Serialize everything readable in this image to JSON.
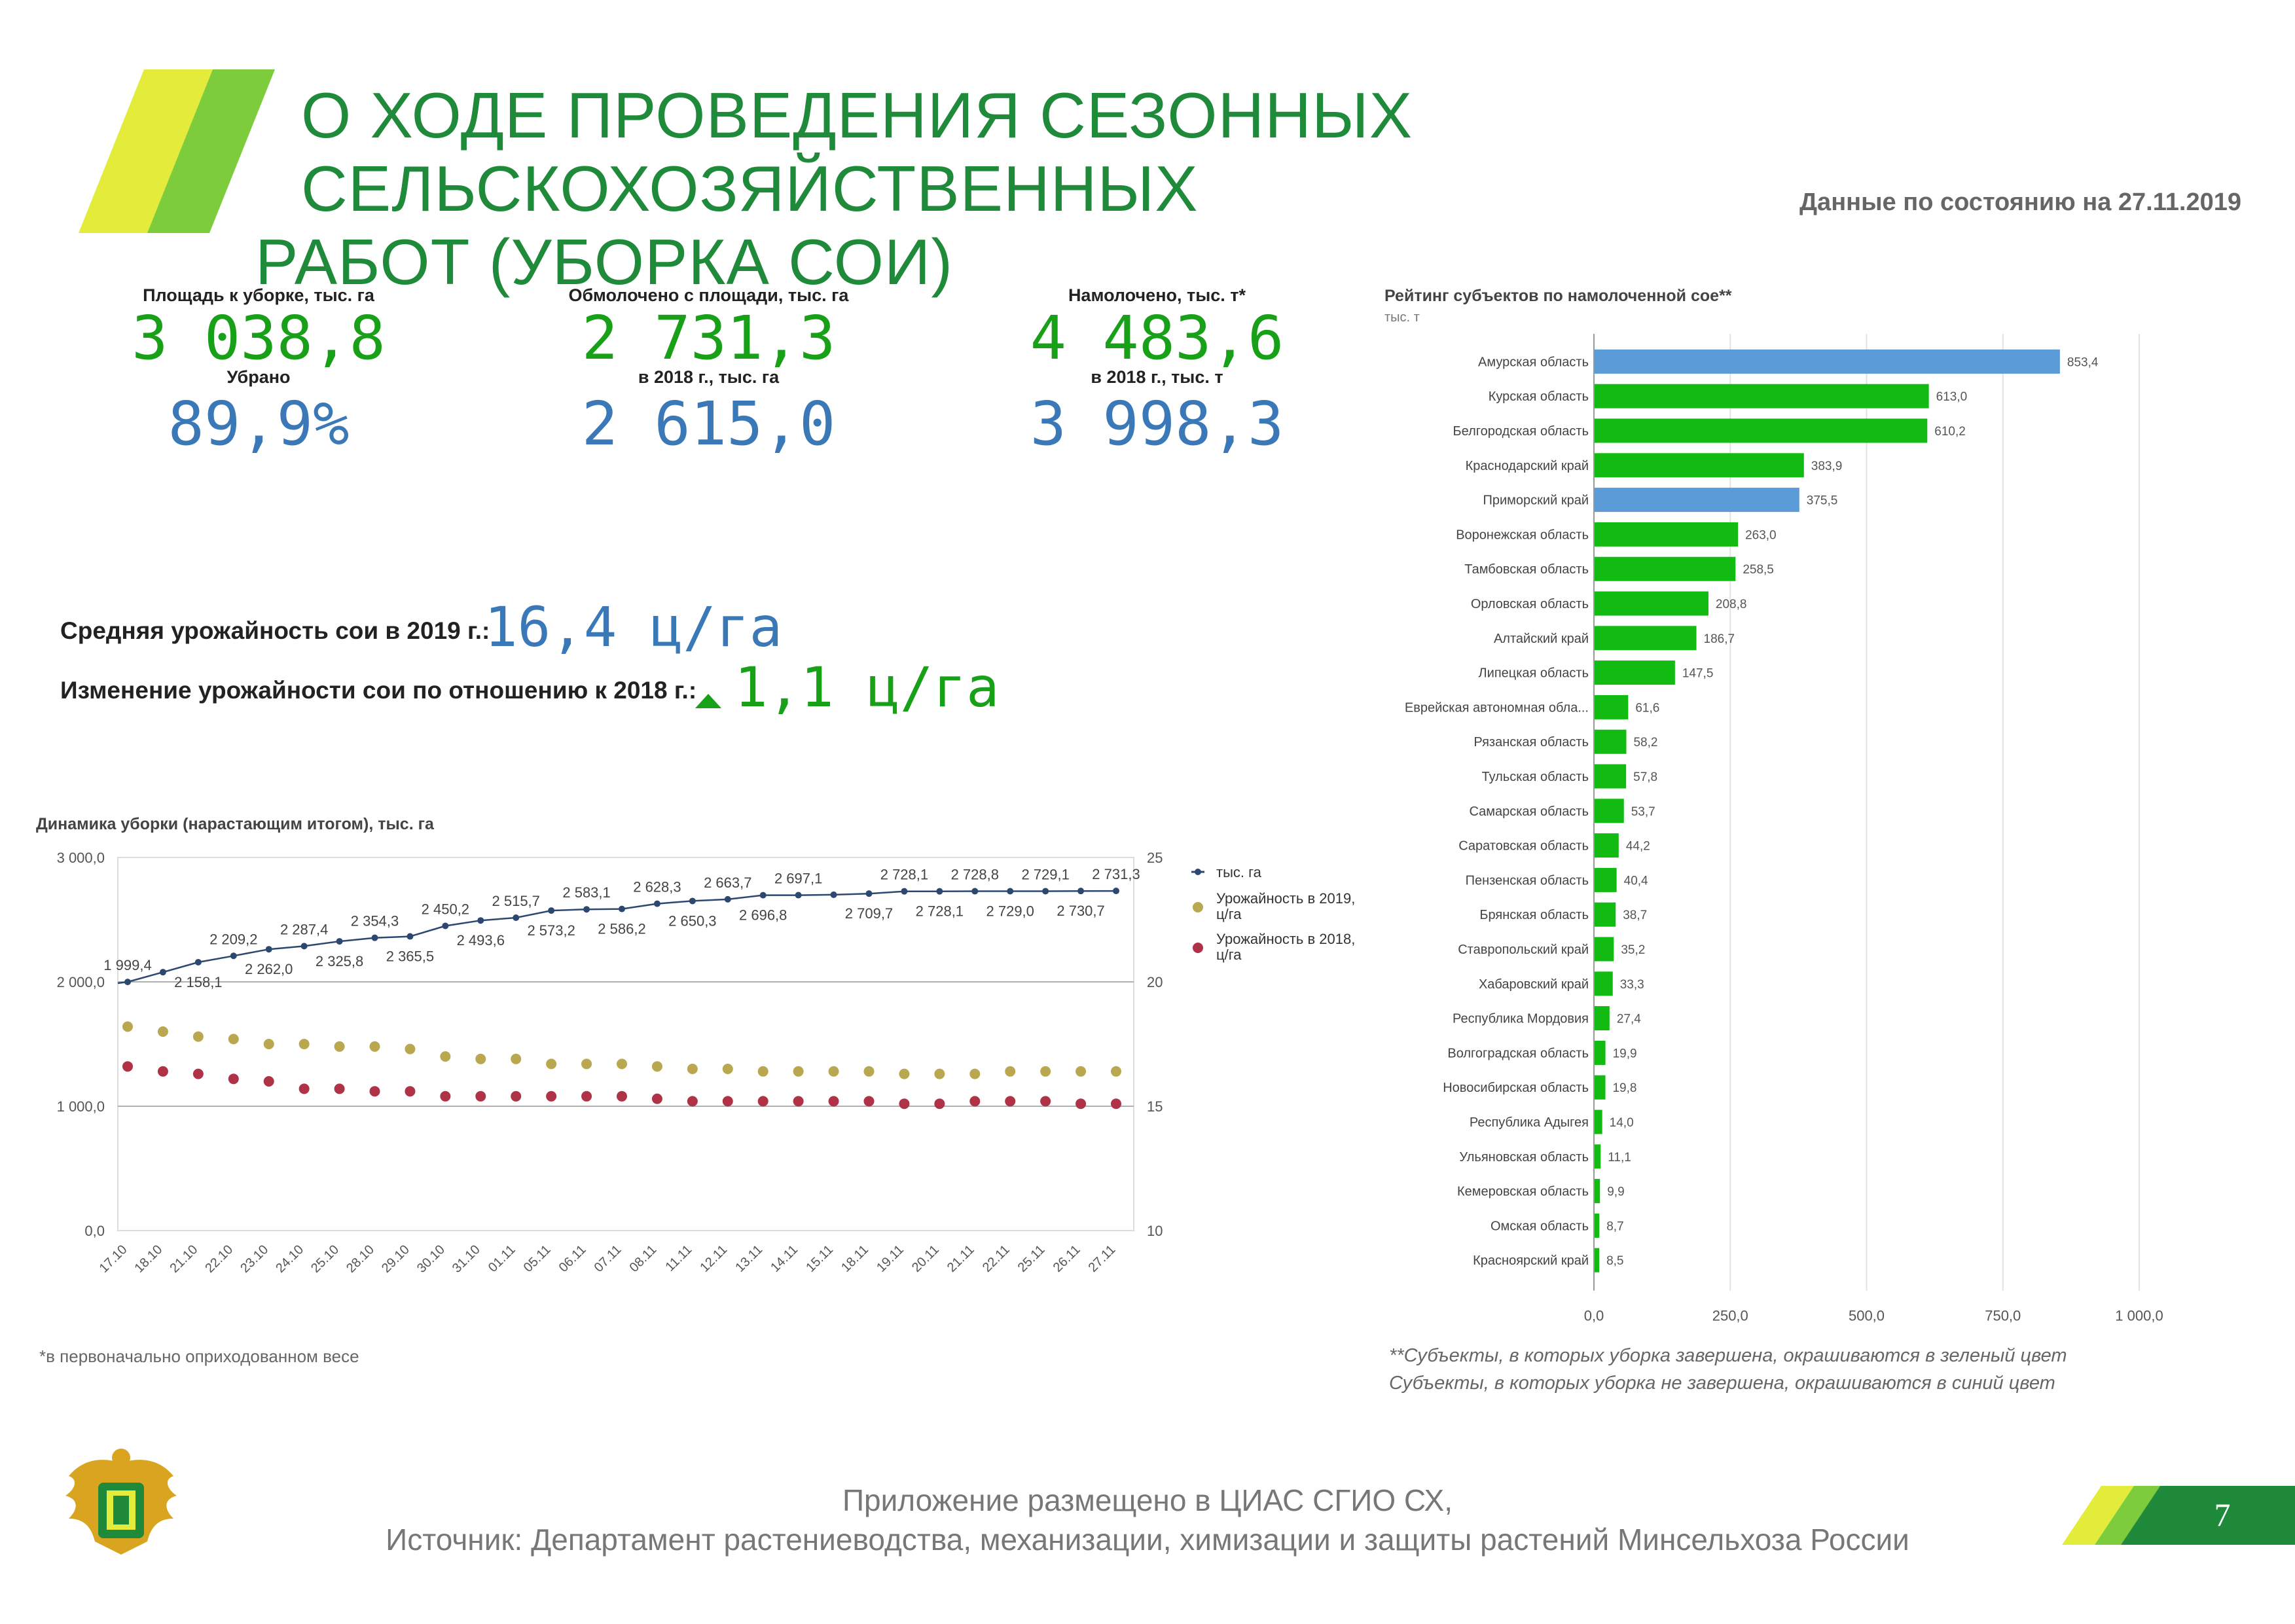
{
  "header": {
    "title_line1": "О ХОДЕ ПРОВЕДЕНИЯ СЕЗОННЫХ СЕЛЬСКОХОЗЯЙСТВЕННЫХ",
    "title_line2": "РАБОТ (УБОРКА СОИ)",
    "as_of": "Данные по состоянию на 27.11.2019"
  },
  "kpis": {
    "area_label": "Площадь к уборке, тыс. га",
    "area_value": "3 038,8",
    "harvested_pct_label": "Убрано",
    "harvested_pct_value": "89,9%",
    "threshed_label": "Обмолочено с площади, тыс. га",
    "threshed_value": "2 731,3",
    "threshed_2018_label": "в 2018 г., тыс. га",
    "threshed_2018_value": "2 615,0",
    "yield_total_label": "Намолочено, тыс. т*",
    "yield_total_value": "4 483,6",
    "yield_total_2018_label": "в 2018 г., тыс. т",
    "yield_total_2018_value": "3 998,3"
  },
  "yield": {
    "avg_label": "Средняя урожайность сои в 2019 г.:",
    "avg_value": "16,4 ц/га",
    "change_label": "Изменение урожайности сои по отношению к 2018 г.:",
    "change_value": "1,1 ц/га"
  },
  "colors": {
    "title_green": "#1e8a3a",
    "kpi_green": "#18a018",
    "kpi_blue": "#3a78b8",
    "bar_green": "#11bb11",
    "bar_blue": "#5b9bd8",
    "line_navy": "#2c4770",
    "dot_2019": "#b9a850",
    "dot_2018": "#b03246"
  },
  "chart_data": [
    {
      "type": "line",
      "title": "Динамика уборки (нарастающим итогом), тыс. га",
      "x": [
        "17.10",
        "18.10",
        "21.10",
        "22.10",
        "23.10",
        "24.10",
        "25.10",
        "28.10",
        "29.10",
        "30.10",
        "31.10",
        "01.11",
        "05.11",
        "06.11",
        "07.11",
        "08.11",
        "11.11",
        "12.11",
        "13.11",
        "14.11",
        "15.11",
        "18.11",
        "19.11",
        "20.11",
        "21.11",
        "22.11",
        "25.11",
        "26.11",
        "27.11"
      ],
      "series": [
        {
          "name": "тыс. га",
          "axis": "left",
          "values": [
            1999.4,
            2078,
            2158.1,
            2209.2,
            2262.0,
            2287.4,
            2325.8,
            2354.3,
            2365.5,
            2450.2,
            2493.6,
            2515.7,
            2573.2,
            2583.1,
            2586.2,
            2628.3,
            2650.3,
            2663.7,
            2696.8,
            2697.1,
            2700.5,
            2709.7,
            2728.1,
            2728.1,
            2728.8,
            2729.0,
            2729.1,
            2730.7,
            2731.3
          ]
        },
        {
          "name": "Урожайность в 2019, ц/га",
          "axis": "right",
          "values": [
            18.2,
            18.0,
            17.8,
            17.7,
            17.5,
            17.5,
            17.4,
            17.4,
            17.3,
            17.0,
            16.9,
            16.9,
            16.7,
            16.7,
            16.7,
            16.6,
            16.5,
            16.5,
            16.4,
            16.4,
            16.4,
            16.4,
            16.3,
            16.3,
            16.3,
            16.4,
            16.4,
            16.4,
            16.4
          ]
        },
        {
          "name": "Урожайность в 2018, ц/га",
          "axis": "right",
          "values": [
            16.6,
            16.4,
            16.3,
            16.1,
            16.0,
            15.7,
            15.7,
            15.6,
            15.6,
            15.4,
            15.4,
            15.4,
            15.4,
            15.4,
            15.4,
            15.3,
            15.2,
            15.2,
            15.2,
            15.2,
            15.2,
            15.2,
            15.1,
            15.1,
            15.2,
            15.2,
            15.2,
            15.1,
            15.1
          ]
        }
      ],
      "point_labels": [
        "1 999,4",
        "",
        "2 158,1",
        "2 209,2",
        "2 262,0",
        "2 287,4",
        "2 325,8",
        "2 354,3",
        "2 365,5",
        "2 450,2",
        "2 493,6",
        "2 515,7",
        "2 573,2",
        "2 583,1",
        "2 586,2",
        "2 628,3",
        "2 650,3",
        "2 663,7",
        "2 696,8",
        "2 697,1",
        "",
        "2 709,7",
        "2 728,1",
        "2 728,1",
        "2 728,8",
        "2 729,0",
        "2 729,1",
        "2 730,7",
        "2 731,3"
      ],
      "ylim_left": [
        0,
        3000
      ],
      "ylim_right": [
        10,
        25
      ],
      "left_ticks": [
        "0,0",
        "1 000,0",
        "2 000,0",
        "3 000,0"
      ],
      "right_ticks": [
        "10",
        "15",
        "20",
        "25"
      ],
      "legend": [
        "тыс. га",
        "Урожайность в 2019,",
        "ц/га",
        "Урожайность в 2018,",
        "ц/га"
      ],
      "legend_position": "right",
      "grid": true
    },
    {
      "type": "bar",
      "orientation": "horizontal",
      "title": "Рейтинг субъектов по намолоченной сое**",
      "subtitle": "тыс. т",
      "categories": [
        "Амурская область",
        "Курская область",
        "Белгородская область",
        "Краснодарский край",
        "Приморский край",
        "Воронежская область",
        "Тамбовская область",
        "Орловская область",
        "Алтайский край",
        "Липецкая область",
        "Еврейская автономная обла...",
        "Рязанская область",
        "Тульская область",
        "Самарская область",
        "Саратовская область",
        "Пензенская область",
        "Брянская область",
        "Ставропольский край",
        "Хабаровский край",
        "Республика Мордовия",
        "Волгоградская область",
        "Новосибирская область",
        "Республика Адыгея",
        "Ульяновская область",
        "Кемеровская область",
        "Омская область",
        "Красноярский край"
      ],
      "values": [
        853.4,
        613.0,
        610.2,
        383.9,
        375.5,
        263.0,
        258.5,
        208.8,
        186.7,
        147.5,
        61.6,
        58.2,
        57.8,
        53.7,
        44.2,
        40.4,
        38.7,
        35.2,
        33.3,
        27.4,
        19.9,
        19.8,
        14.0,
        11.1,
        9.9,
        8.7,
        8.5
      ],
      "value_labels": [
        "853,4",
        "613,0",
        "610,2",
        "383,9",
        "375,5",
        "263,0",
        "258,5",
        "208,8",
        "186,7",
        "147,5",
        "61,6",
        "58,2",
        "57,8",
        "53,7",
        "44,2",
        "40,4",
        "38,7",
        "35,2",
        "33,3",
        "27,4",
        "19,9",
        "19,8",
        "14,0",
        "11,1",
        "9,9",
        "8,7",
        "8,5"
      ],
      "status": [
        "incomplete",
        "complete",
        "complete",
        "complete",
        "incomplete",
        "complete",
        "complete",
        "complete",
        "complete",
        "complete",
        "complete",
        "complete",
        "complete",
        "complete",
        "complete",
        "complete",
        "complete",
        "complete",
        "complete",
        "complete",
        "complete",
        "complete",
        "complete",
        "complete",
        "complete",
        "complete",
        "complete"
      ],
      "xlim": [
        0,
        1000
      ],
      "x_ticks": [
        "0,0",
        "250,0",
        "500,0",
        "750,0",
        "1 000,0"
      ],
      "grid": true
    }
  ],
  "notes": {
    "footnote_left": "*в первоначально оприходованном весе",
    "right_note_1": "**Субъекты, в которых уборка завершена, окрашиваются в зеленый цвет",
    "right_note_2": "Субъекты, в которых уборка не завершена, окрашиваются в синий цвет"
  },
  "footer": {
    "line1": "Приложение размещено в ЦИАС СГИО СХ,",
    "line2": "Источник: Департамент растениеводства, механизации, химизации и защиты растений Минсельхоза России",
    "page_number": "7"
  }
}
